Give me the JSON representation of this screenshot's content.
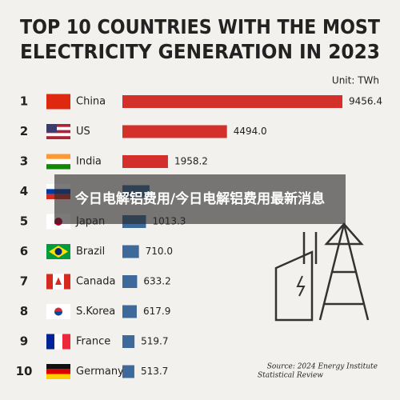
{
  "chart_data": {
    "type": "bar",
    "title_lines": [
      "TOP 10 COUNTRIES WITH THE MOST",
      "ELECTRICITY GENERATION IN 2023"
    ],
    "unit": "Unit: TWh",
    "ranks": [
      "1",
      "2",
      "3",
      "4",
      "5",
      "6",
      "7",
      "8",
      "9",
      "10"
    ],
    "categories": [
      "China",
      "US",
      "India",
      null,
      "Japan",
      "Brazil",
      "Canada",
      "S.Korea",
      "France",
      "Germany"
    ],
    "values": [
      9456.4,
      4494,
      1958.2,
      1167,
      1013.3,
      710,
      633.2,
      617.9,
      519.7,
      513.7
    ],
    "value_labels": [
      "9456.4",
      "4494.0",
      "1958.2",
      null,
      "1013.3",
      "710.0",
      "633.2",
      "617.9",
      "519.7",
      "513.7"
    ],
    "colors": [
      "#d3302b",
      "#d3302b",
      "#d3302b",
      "#3e6a9b",
      "#3e6a9b",
      "#3e6a9b",
      "#3e6a9b",
      "#3e6a9b",
      "#3e6a9b",
      "#3e6a9b"
    ],
    "source_lines": [
      "Source: 2024 Energy Institute",
      "Statistical Review"
    ]
  },
  "overlay": {
    "text": "今日电解铝费用/今日电解铝费用最新消息"
  }
}
